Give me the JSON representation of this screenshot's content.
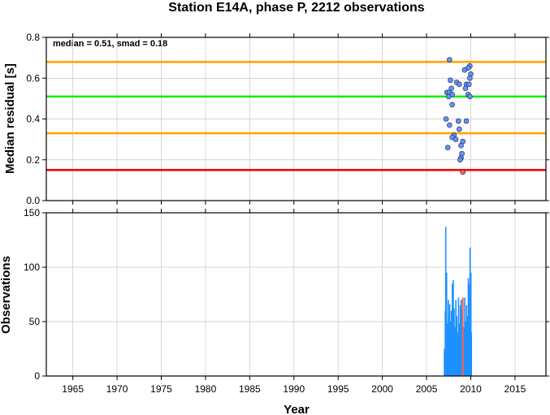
{
  "chart_data": [
    {
      "type": "scatter",
      "title": "Station E14A, phase P, 2212 observations",
      "xlabel": "",
      "ylabel": "Median residual [s]",
      "xlim": [
        1962,
        2018.5
      ],
      "ylim": [
        0,
        0.8
      ],
      "yticks": [
        "0.0",
        "0.2",
        "0.4",
        "0.6",
        "0.8"
      ],
      "grid": true,
      "annotation": "median = 0.51, smad = 0.18",
      "reference_lines": [
        {
          "value": 0.68,
          "color": "#ffa500"
        },
        {
          "value": 0.51,
          "color": "#00ee00"
        },
        {
          "value": 0.33,
          "color": "#ffa500"
        },
        {
          "value": 0.15,
          "color": "#ff0000"
        }
      ],
      "point_colors": {
        "normal": "#6495ed",
        "outlier": "#ff6347"
      },
      "points": [
        {
          "x": 2007.6,
          "y": 0.69
        },
        {
          "x": 2009.9,
          "y": 0.66
        },
        {
          "x": 2009.7,
          "y": 0.65
        },
        {
          "x": 2009.3,
          "y": 0.64
        },
        {
          "x": 2010.0,
          "y": 0.62
        },
        {
          "x": 2009.9,
          "y": 0.6
        },
        {
          "x": 2007.7,
          "y": 0.59
        },
        {
          "x": 2008.4,
          "y": 0.58
        },
        {
          "x": 2008.7,
          "y": 0.57
        },
        {
          "x": 2009.5,
          "y": 0.57
        },
        {
          "x": 2009.8,
          "y": 0.57
        },
        {
          "x": 2007.8,
          "y": 0.55
        },
        {
          "x": 2009.4,
          "y": 0.55
        },
        {
          "x": 2007.3,
          "y": 0.53
        },
        {
          "x": 2007.6,
          "y": 0.53
        },
        {
          "x": 2007.9,
          "y": 0.52
        },
        {
          "x": 2009.7,
          "y": 0.52
        },
        {
          "x": 2007.5,
          "y": 0.51
        },
        {
          "x": 2009.9,
          "y": 0.51
        },
        {
          "x": 2007.9,
          "y": 0.47
        },
        {
          "x": 2007.2,
          "y": 0.4
        },
        {
          "x": 2008.6,
          "y": 0.39
        },
        {
          "x": 2009.5,
          "y": 0.39
        },
        {
          "x": 2007.6,
          "y": 0.37
        },
        {
          "x": 2008.7,
          "y": 0.35
        },
        {
          "x": 2008.1,
          "y": 0.32
        },
        {
          "x": 2007.9,
          "y": 0.31
        },
        {
          "x": 2008.3,
          "y": 0.3
        },
        {
          "x": 2009.1,
          "y": 0.29
        },
        {
          "x": 2008.9,
          "y": 0.27
        },
        {
          "x": 2007.4,
          "y": 0.26
        },
        {
          "x": 2009.0,
          "y": 0.23
        },
        {
          "x": 2008.9,
          "y": 0.21
        },
        {
          "x": 2008.8,
          "y": 0.2
        },
        {
          "x": 2009.1,
          "y": 0.14,
          "outlier": true
        }
      ]
    },
    {
      "type": "bar",
      "title": "",
      "xlabel": "Year",
      "ylabel": "Observations",
      "xlim": [
        1962,
        2018.5
      ],
      "ylim": [
        0,
        150
      ],
      "yticks": [
        "0",
        "50",
        "100",
        "150"
      ],
      "xticks": [
        "1965",
        "1970",
        "1975",
        "1980",
        "1985",
        "1990",
        "1995",
        "2000",
        "2005",
        "2010",
        "2015"
      ],
      "grid": true,
      "bar_color": "#1e90ff",
      "marker": {
        "x": 2009.1,
        "color": "#ff6347"
      },
      "bars": [
        {
          "x": 2007.0,
          "y": 25
        },
        {
          "x": 2007.1,
          "y": 60
        },
        {
          "x": 2007.15,
          "y": 137
        },
        {
          "x": 2007.25,
          "y": 95
        },
        {
          "x": 2007.35,
          "y": 48
        },
        {
          "x": 2007.45,
          "y": 70
        },
        {
          "x": 2007.55,
          "y": 55
        },
        {
          "x": 2007.6,
          "y": 66
        },
        {
          "x": 2007.7,
          "y": 50
        },
        {
          "x": 2007.8,
          "y": 60
        },
        {
          "x": 2007.9,
          "y": 85
        },
        {
          "x": 2008.0,
          "y": 88
        },
        {
          "x": 2008.1,
          "y": 62
        },
        {
          "x": 2008.2,
          "y": 45
        },
        {
          "x": 2008.3,
          "y": 70
        },
        {
          "x": 2008.4,
          "y": 55
        },
        {
          "x": 2008.5,
          "y": 40
        },
        {
          "x": 2008.6,
          "y": 72
        },
        {
          "x": 2008.7,
          "y": 48
        },
        {
          "x": 2008.8,
          "y": 65
        },
        {
          "x": 2008.9,
          "y": 70
        },
        {
          "x": 2009.0,
          "y": 60
        },
        {
          "x": 2009.2,
          "y": 45
        },
        {
          "x": 2009.3,
          "y": 72
        },
        {
          "x": 2009.4,
          "y": 50
        },
        {
          "x": 2009.5,
          "y": 65
        },
        {
          "x": 2009.6,
          "y": 55
        },
        {
          "x": 2009.7,
          "y": 90
        },
        {
          "x": 2009.8,
          "y": 85
        },
        {
          "x": 2009.9,
          "y": 118
        },
        {
          "x": 2010.0,
          "y": 95
        },
        {
          "x": 2010.05,
          "y": 40
        }
      ]
    }
  ]
}
